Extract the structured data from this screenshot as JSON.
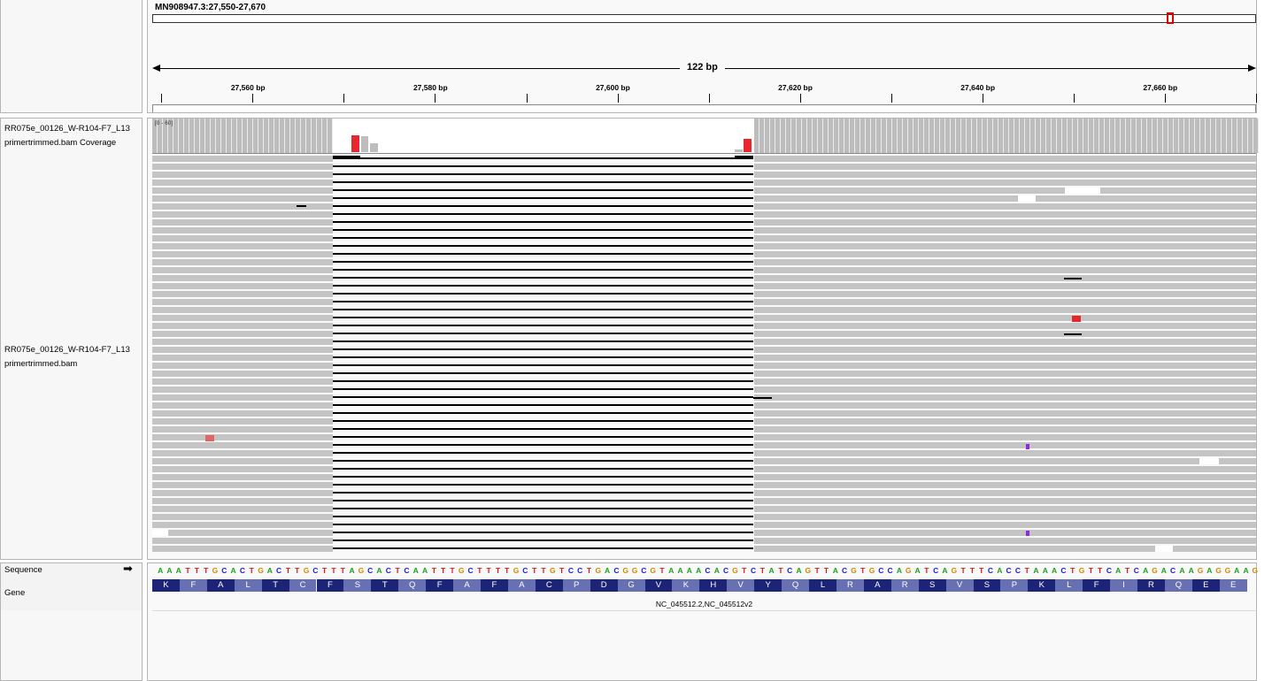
{
  "locus": "MN908947.3:27,550-27,670",
  "span_label": "122 bp",
  "ruler_ticks": [
    "27,560 bp",
    "27,580 bp",
    "27,600 bp",
    "27,620 bp",
    "27,640 bp",
    "27,660 bp"
  ],
  "coverage_range": "[0 - 60]",
  "tracks": {
    "coverage_name_line1": "RR075e_00126_W-R104-F7_L13",
    "coverage_name_line2": "primertrimmed.bam Coverage",
    "alignment_name_line1": "RR075e_00126_W-R104-F7_L13",
    "alignment_name_line2": "primertrimmed.bam",
    "sequence_label": "Sequence",
    "gene_label": "Gene",
    "strand_arrow": "➡"
  },
  "sequence": "AAATTTGCACTGACTTGCTTTAGCACTCAATTTGCTTTTGCTTGTCCTGACGGCGTAAAACACGTCTATCAGTTACGTGCCAGATCAGTTTCACCTAAACTGTTCATCAGACAAGAGGAAG",
  "amino_acids": [
    "K",
    "F",
    "A",
    "L",
    "T",
    "C",
    "F",
    "S",
    "T",
    "Q",
    "F",
    "A",
    "F",
    "A",
    "C",
    "P",
    "D",
    "G",
    "V",
    "K",
    "H",
    "V",
    "Y",
    "Q",
    "L",
    "R",
    "A",
    "R",
    "S",
    "V",
    "S",
    "P",
    "K",
    "L",
    "F",
    "I",
    "R",
    "Q",
    "E",
    "E"
  ],
  "gene_name": "NC_045512.2,NC_045512v2",
  "colors": {
    "base_A": "#1a9e1a",
    "base_C": "#1a1ad6",
    "base_G": "#d18a00",
    "base_T": "#d61a1a",
    "read_gray": "#c4c4c4",
    "deletion_line": "#000000",
    "mismatch": "#e8262b",
    "insertion": "#8a2be2",
    "aa_dark": "#1b2477",
    "aa_light": "#6670b3"
  }
}
